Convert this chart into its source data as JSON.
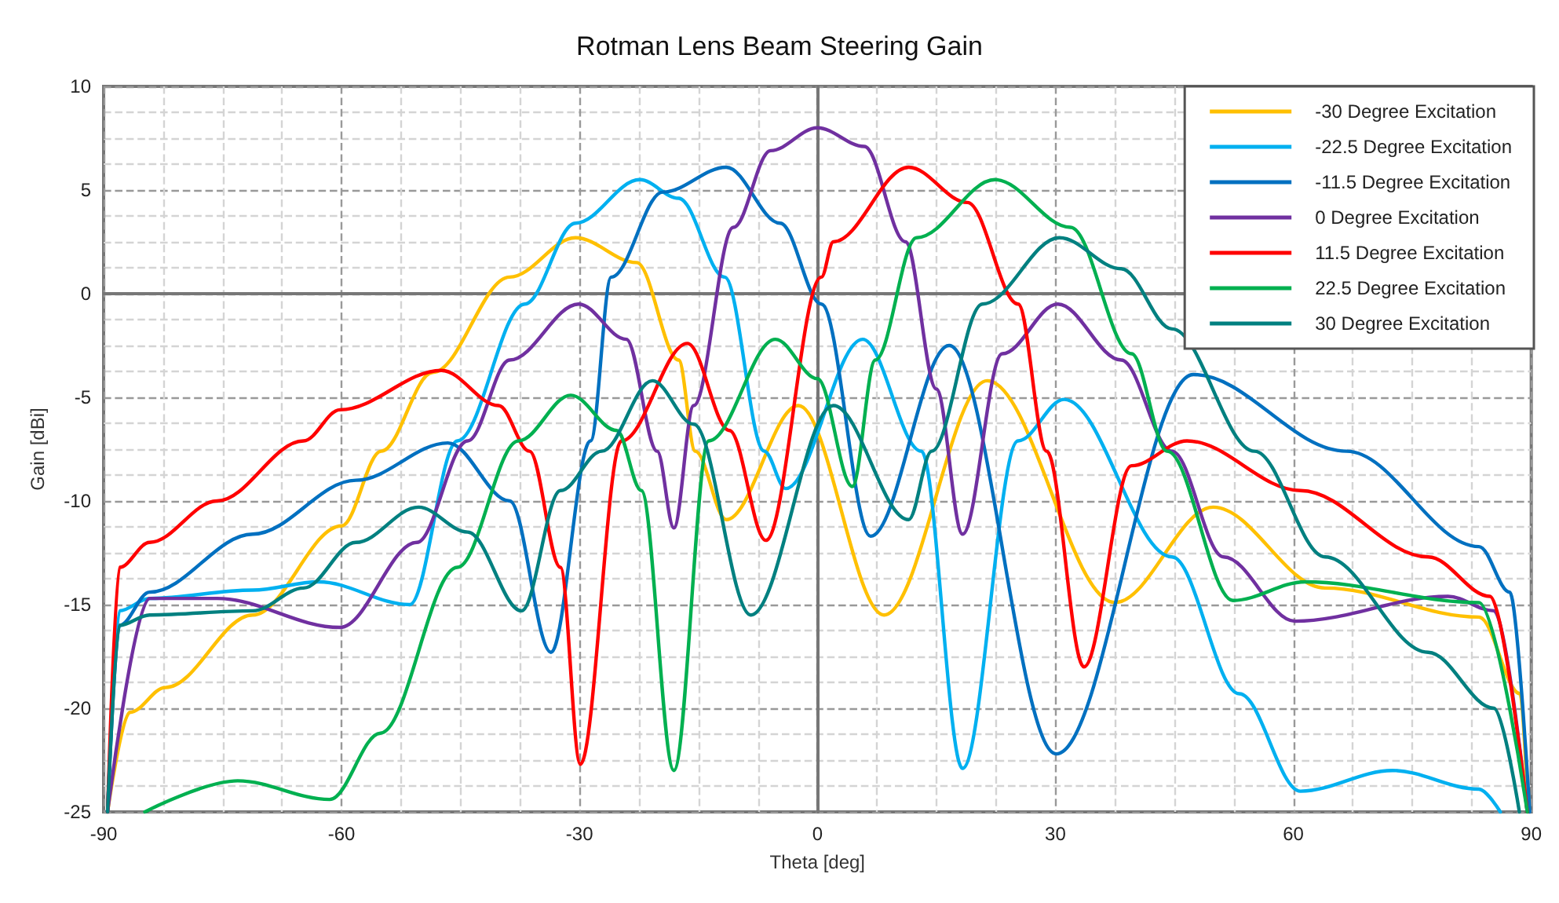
{
  "chart_data": {
    "type": "line",
    "title": "Rotman Lens Beam Steering Gain",
    "xlabel": "Theta [deg]",
    "ylabel": "Gain [dBi]",
    "xlim": [
      -90,
      90
    ],
    "xticks": [
      -90,
      -60,
      -30,
      0,
      30,
      60,
      90
    ],
    "ylim": [
      -25,
      10
    ],
    "yticks": [
      -25,
      -20,
      -15,
      -10,
      -5,
      0,
      5,
      10
    ],
    "grid": true,
    "legend": "top right",
    "marker": "none",
    "line_style": "solid",
    "series": [
      {
        "name": "-30 Degree Excitation",
        "color": "#ffc000",
        "x": [
          -89.5,
          -86.7,
          -82.2,
          -71.2,
          -60,
          -55,
          -48.5,
          -38.8,
          -30.5,
          -22.8,
          -17.5,
          -15.4,
          -11.5,
          -2.4,
          8.4,
          21.4,
          37.5,
          49.9,
          64,
          83.4,
          88.6,
          89.6
        ],
        "values": [
          -25,
          -20.2,
          -19,
          -15.5,
          -11.2,
          -7.6,
          -3.8,
          0.8,
          2.7,
          1.5,
          -3.2,
          -7.6,
          -10.9,
          -5.4,
          -15.5,
          -4.2,
          -14.9,
          -10.3,
          -14.2,
          -15.6,
          -19.3,
          -25
        ]
      },
      {
        "name": "-22.5 Degree Excitation",
        "color": "#00b0f0",
        "x": [
          -89.5,
          -88,
          -84.2,
          -71.2,
          -62.9,
          -51.4,
          -45.4,
          -36.9,
          -30.5,
          -22.4,
          -17.5,
          -11.7,
          -6.7,
          -4,
          5.7,
          13.1,
          18.3,
          25.3,
          31.1,
          44.7,
          53.2,
          60.9,
          72.5,
          83.4,
          86.1
        ],
        "values": [
          -25,
          -15.3,
          -14.7,
          -14.3,
          -13.9,
          -15,
          -7.1,
          -0.5,
          3.4,
          5.5,
          4.6,
          0.8,
          -7.6,
          -9.4,
          -2.2,
          -7.6,
          -22.9,
          -7.1,
          -5.1,
          -12.7,
          -19.3,
          -24,
          -23,
          -23.9,
          -25
        ]
      },
      {
        "name": "-11.5 Degree Excitation",
        "color": "#0070c0",
        "x": [
          -89.5,
          -88,
          -84.2,
          -71.2,
          -58.2,
          -46.6,
          -38.8,
          -33.6,
          -28.6,
          -26,
          -19.5,
          -11.5,
          -4.7,
          0.5,
          6.7,
          16.6,
          30.1,
          47.4,
          66.7,
          83.4,
          87.3,
          89.8
        ],
        "values": [
          -25,
          -16,
          -14.4,
          -11.6,
          -9,
          -7.2,
          -10,
          -17.3,
          -7.1,
          0.8,
          4.9,
          6.1,
          3.4,
          -0.5,
          -11.7,
          -2.5,
          -22.2,
          -3.9,
          -7.6,
          -12.2,
          -14.4,
          -25
        ]
      },
      {
        "name": "0 Degree Excitation",
        "color": "#7030a0",
        "x": [
          -89.5,
          -84.2,
          -75.7,
          -60.2,
          -50.5,
          -44.1,
          -38.8,
          -30.1,
          -24.1,
          -20.2,
          -18.1,
          -15.6,
          -10.6,
          -5.9,
          0,
          5.9,
          11.1,
          15,
          18.3,
          23.3,
          30.3,
          38.3,
          44.7,
          51.2,
          60.2,
          79.5,
          85.3,
          89.5
        ],
        "values": [
          -25,
          -14.7,
          -14.7,
          -16.1,
          -12,
          -7.1,
          -3.2,
          -0.5,
          -2.2,
          -7.6,
          -11.3,
          -5.4,
          3.2,
          6.9,
          8,
          7.1,
          2.5,
          -4.6,
          -11.6,
          -2.9,
          -0.5,
          -3.2,
          -7.6,
          -12.7,
          -15.8,
          -14.6,
          -15.3,
          -25
        ]
      },
      {
        "name": "11.5 Degree Excitation",
        "color": "#ff0000",
        "x": [
          -89.5,
          -88,
          -84.2,
          -75.7,
          -64.8,
          -60.2,
          -47.4,
          -40.2,
          -36.3,
          -32.4,
          -29.9,
          -24.7,
          -16.4,
          -11.1,
          -6.5,
          0.5,
          2,
          11.5,
          18.9,
          25.3,
          28.9,
          33.6,
          39.6,
          46.6,
          60.9,
          77,
          84.8,
          89.5
        ],
        "values": [
          -25,
          -13.2,
          -12,
          -10,
          -7.1,
          -5.6,
          -3.7,
          -5.4,
          -7.6,
          -13.2,
          -22.7,
          -7.1,
          -2.4,
          -6.6,
          -11.9,
          0.8,
          2.5,
          6.1,
          4.4,
          -0.5,
          -7.6,
          -18,
          -8.3,
          -7.1,
          -9.5,
          -12.7,
          -14.6,
          -25
        ]
      },
      {
        "name": "22.5 Degree Excitation",
        "color": "#00b050",
        "x": [
          -84.8,
          -73.1,
          -61.5,
          -55.1,
          -45.4,
          -37.7,
          -31.1,
          -25.3,
          -22.2,
          -18.1,
          -13.7,
          -5.3,
          0,
          4.4,
          7.3,
          12.5,
          22.4,
          31.9,
          39.6,
          44.1,
          52.4,
          61.5,
          83.4,
          89.5
        ],
        "values": [
          -25,
          -23.5,
          -24.4,
          -21.2,
          -13.2,
          -7.1,
          -4.9,
          -6.6,
          -9.5,
          -23,
          -7.1,
          -2.2,
          -4.1,
          -9.3,
          -3.2,
          2.7,
          5.5,
          3.2,
          -2.9,
          -7.6,
          -14.8,
          -13.9,
          -14.9,
          -25
        ]
      },
      {
        "name": "30 Degree Excitation",
        "color": "#008080",
        "x": [
          -89.5,
          -88,
          -84.2,
          -71.2,
          -64.8,
          -58.2,
          -50.3,
          -44.1,
          -37.3,
          -32.4,
          -27.2,
          -20.8,
          -15.6,
          -8.4,
          2,
          11.5,
          14.4,
          20.8,
          30.5,
          38.3,
          44.7,
          55.1,
          64,
          77,
          85.3,
          88.5
        ],
        "values": [
          -25,
          -16,
          -15.5,
          -15.3,
          -14.2,
          -12,
          -10.3,
          -11.5,
          -15.3,
          -9.5,
          -7.6,
          -4.2,
          -6.3,
          -15.5,
          -5.4,
          -10.9,
          -7.6,
          -0.5,
          2.7,
          1.2,
          -1.7,
          -7.6,
          -12.7,
          -17.3,
          -20,
          -25
        ]
      }
    ]
  }
}
